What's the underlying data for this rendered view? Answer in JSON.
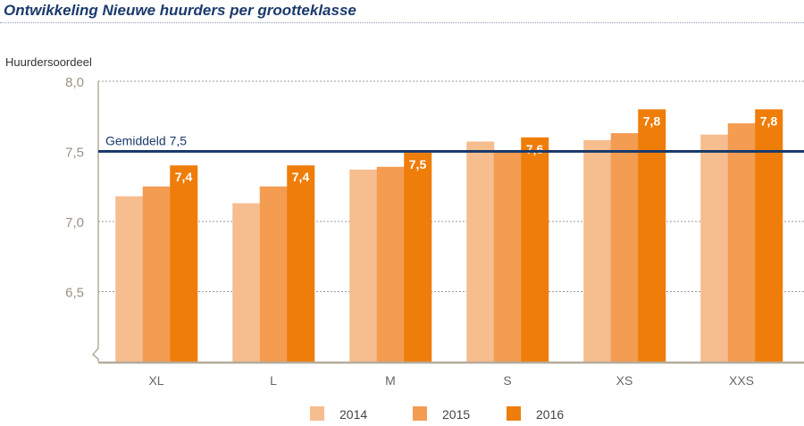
{
  "title": "Ontwikkeling Nieuwe huurders per grootteklasse",
  "chart_data": {
    "type": "bar",
    "title": "Ontwikkeling Nieuwe huurders per grootteklasse",
    "ylabel": "Huurdersoordeel",
    "xlabel": "",
    "ylim": [
      6.0,
      8.0
    ],
    "yticks": [
      "8,0",
      "7,5",
      "7,0",
      "6,5"
    ],
    "ytick_values": [
      8.0,
      7.5,
      7.0,
      6.5
    ],
    "grid": true,
    "legend_position": "bottom",
    "categories": [
      "XL",
      "L",
      "M",
      "S",
      "XS",
      "XXS"
    ],
    "series": [
      {
        "name": "2014",
        "color": "#f6bd8f",
        "values": [
          7.18,
          7.13,
          7.37,
          7.57,
          7.58,
          7.62
        ]
      },
      {
        "name": "2015",
        "color": "#f39c52",
        "values": [
          7.25,
          7.25,
          7.39,
          7.5,
          7.63,
          7.7
        ]
      },
      {
        "name": "2016",
        "color": "#ef7d0a",
        "values": [
          7.4,
          7.4,
          7.49,
          7.6,
          7.8,
          7.8
        ]
      }
    ],
    "data_labels_2016": [
      "7,4",
      "7,4",
      "7,5",
      "7,6",
      "7,8",
      "7,8"
    ],
    "reference_line": {
      "label": "Gemiddeld 7,5",
      "value": 7.5,
      "color": "#1b3a6b"
    }
  }
}
